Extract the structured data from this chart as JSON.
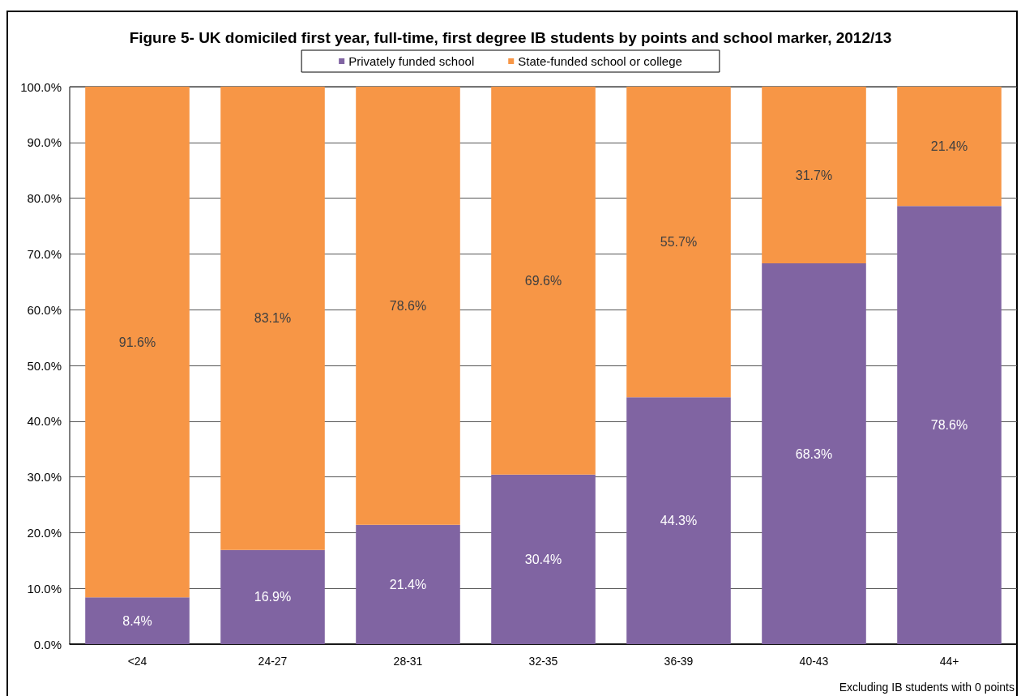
{
  "chart_data": {
    "type": "bar",
    "title": "Figure 5- UK domiciled first year, full-time, first degree IB students by points and school marker, 2012/13",
    "categories": [
      "<24",
      "24-27",
      "28-31",
      "32-35",
      "36-39",
      "40-43",
      "44+"
    ],
    "series": [
      {
        "name": "Privately funded school",
        "color": "#8064a2",
        "values": [
          8.4,
          16.9,
          21.4,
          30.4,
          44.3,
          68.3,
          78.6
        ],
        "value_labels": [
          "8.4%",
          "16.9%",
          "21.4%",
          "30.4%",
          "44.3%",
          "68.3%",
          "78.6%"
        ]
      },
      {
        "name": "State-funded school or college",
        "color": "#f79646",
        "values": [
          91.6,
          83.1,
          78.6,
          69.6,
          55.7,
          31.7,
          21.4
        ],
        "value_labels": [
          "91.6%",
          "83.1%",
          "78.6%",
          "69.6%",
          "55.7%",
          "31.7%",
          "21.4%"
        ]
      }
    ],
    "stacked": true,
    "ylim": [
      0,
      100
    ],
    "yticks": [
      {
        "value": 0,
        "label": "0.0%"
      },
      {
        "value": 10,
        "label": "10.0%"
      },
      {
        "value": 20,
        "label": "20.0%"
      },
      {
        "value": 30,
        "label": "30.0%"
      },
      {
        "value": 40,
        "label": "40.0%"
      },
      {
        "value": 50,
        "label": "50.0%"
      },
      {
        "value": 60,
        "label": "60.0%"
      },
      {
        "value": 70,
        "label": "70.0%"
      },
      {
        "value": 80,
        "label": "80.0%"
      },
      {
        "value": 90,
        "label": "90.0%"
      },
      {
        "value": 100,
        "label": "100.0%"
      }
    ],
    "grid": "y",
    "legend": "top",
    "annotations": [
      "Excluding IB students with 0 points"
    ]
  }
}
